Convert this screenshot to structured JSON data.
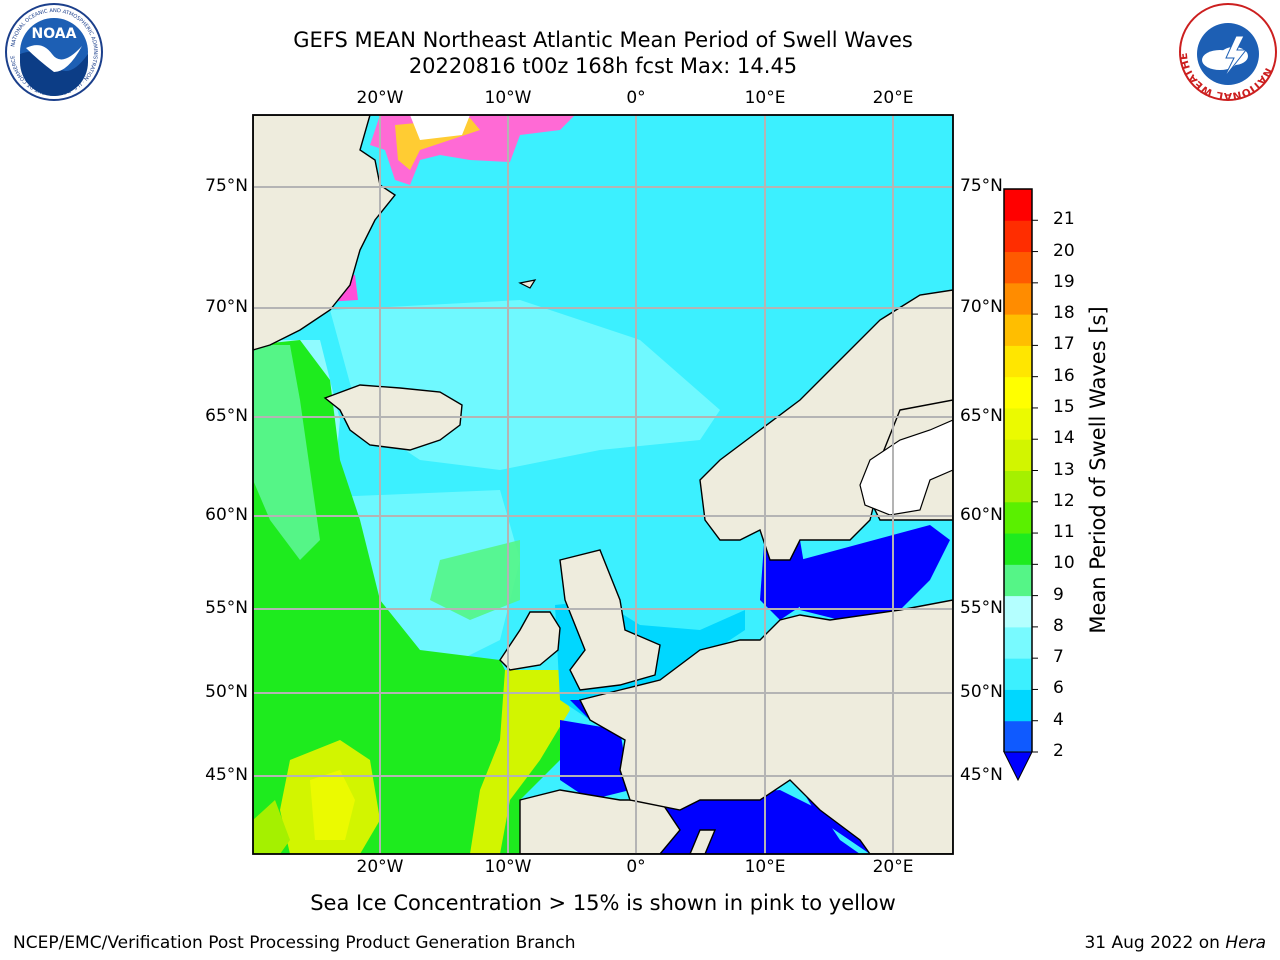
{
  "header": {
    "title_line1": "GEFS MEAN Northeast Atlantic Mean Period of Swell Waves",
    "title_line2": "20220816 t00z 168h fcst   Max: 14.45"
  },
  "map": {
    "region": "Northeast Atlantic",
    "variable": "Mean Period of Swell Waves",
    "lon_labels": [
      "20°W",
      "10°W",
      "0°",
      "10°E",
      "20°E"
    ],
    "lat_labels": [
      "75°N",
      "70°N",
      "65°N",
      "60°N",
      "55°N",
      "50°N",
      "45°N"
    ],
    "colors": {
      "land": "#eeecdd",
      "grid": "#b4b4b4",
      "coast": "#000000"
    }
  },
  "colorbar": {
    "label": "Mean Period of Swell Waves [s]",
    "ticks": [
      "2",
      "4",
      "6",
      "7",
      "8",
      "9",
      "10",
      "11",
      "12",
      "13",
      "14",
      "15",
      "16",
      "17",
      "18",
      "19",
      "20",
      "21"
    ],
    "colors": [
      "#0f5aff",
      "#00d7ff",
      "#3cf0ff",
      "#78faff",
      "#b4ffff",
      "#55f587",
      "#1eeb1e",
      "#5af000",
      "#a5f000",
      "#d2f500",
      "#ebfa00",
      "#ffff00",
      "#ffe600",
      "#ffbe00",
      "#ff8c00",
      "#ff5a00",
      "#ff2d00",
      "#ff0000"
    ],
    "under_color": "#0000ff"
  },
  "footer": {
    "ice_note": "Sea Ice Concentration > 15% is shown in pink to yellow",
    "branch": "NCEP/EMC/Verification Post Processing Product Generation Branch",
    "date_text": "31 Aug 2022 on",
    "host": "Hera"
  },
  "logos": {
    "noaa_text": "NOAA",
    "noaa_ring": "NATIONAL OCEANIC AND ATMOSPHERIC ADMINISTRATION · U.S. DEPARTMENT OF COMMERCE",
    "nws_ring": "NATIONAL WEATHER SERVICE"
  }
}
